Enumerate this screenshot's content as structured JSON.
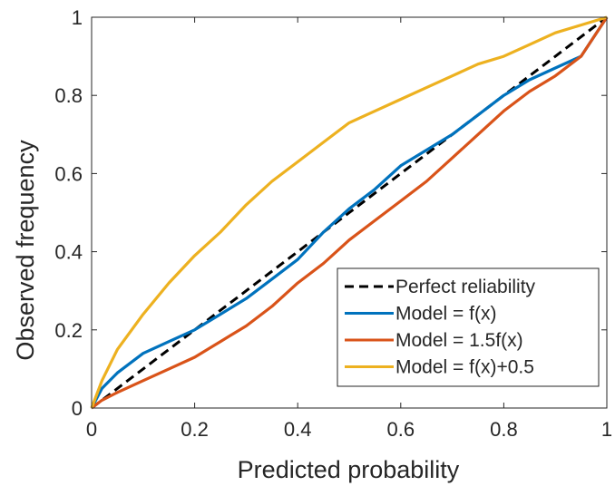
{
  "chart_data": {
    "type": "line",
    "title": "",
    "xlabel": "Predicted probability",
    "ylabel": "Observed frequency",
    "xlim": [
      0,
      1
    ],
    "ylim": [
      0,
      1
    ],
    "x_ticks": [
      "0",
      "0.2",
      "0.4",
      "0.6",
      "0.8",
      "1"
    ],
    "y_ticks": [
      "0",
      "0.2",
      "0.4",
      "0.6",
      "0.8",
      "1"
    ],
    "grid": false,
    "legend_position": "bottom-right",
    "series": [
      {
        "name": "Perfect reliability",
        "color": "#000000",
        "dash": true,
        "x": [
          0,
          1
        ],
        "y": [
          0,
          1
        ]
      },
      {
        "name": "Model = f(x)",
        "color": "#0072BD",
        "x": [
          0,
          0.02,
          0.05,
          0.1,
          0.15,
          0.2,
          0.25,
          0.3,
          0.35,
          0.4,
          0.45,
          0.5,
          0.55,
          0.6,
          0.65,
          0.7,
          0.75,
          0.8,
          0.85,
          0.9,
          0.95,
          1
        ],
        "y": [
          0,
          0.05,
          0.09,
          0.14,
          0.17,
          0.2,
          0.24,
          0.28,
          0.33,
          0.38,
          0.45,
          0.51,
          0.56,
          0.62,
          0.66,
          0.7,
          0.75,
          0.8,
          0.84,
          0.87,
          0.9,
          1
        ]
      },
      {
        "name": "Model = 1.5f(x)",
        "color": "#D95319",
        "x": [
          0,
          0.02,
          0.05,
          0.1,
          0.15,
          0.2,
          0.25,
          0.3,
          0.35,
          0.4,
          0.45,
          0.5,
          0.55,
          0.6,
          0.65,
          0.7,
          0.75,
          0.8,
          0.85,
          0.9,
          0.95,
          1
        ],
        "y": [
          0,
          0.02,
          0.04,
          0.07,
          0.1,
          0.13,
          0.17,
          0.21,
          0.26,
          0.32,
          0.37,
          0.43,
          0.48,
          0.53,
          0.58,
          0.64,
          0.7,
          0.76,
          0.81,
          0.85,
          0.9,
          1
        ]
      },
      {
        "name": "Model = f(x)+0.5",
        "color": "#EDB120",
        "x": [
          0,
          0.02,
          0.05,
          0.1,
          0.15,
          0.2,
          0.25,
          0.3,
          0.35,
          0.4,
          0.45,
          0.5,
          0.55,
          0.6,
          0.65,
          0.7,
          0.75,
          0.8,
          0.85,
          0.9,
          0.95,
          1
        ],
        "y": [
          0,
          0.07,
          0.15,
          0.24,
          0.32,
          0.39,
          0.45,
          0.52,
          0.58,
          0.63,
          0.68,
          0.73,
          0.76,
          0.79,
          0.82,
          0.85,
          0.88,
          0.9,
          0.93,
          0.96,
          0.98,
          1
        ]
      }
    ]
  }
}
